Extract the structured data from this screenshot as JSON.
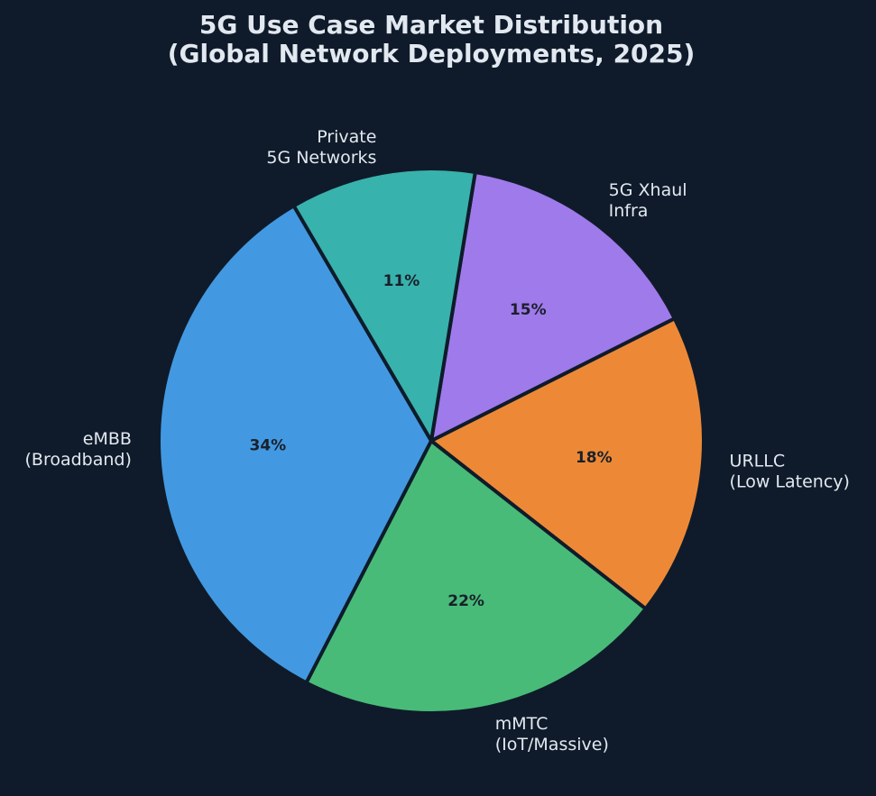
{
  "chart_data": {
    "type": "pie",
    "title": "5G Use Case Market Distribution\n(Global Network Deployments, 2025)",
    "title_lines": [
      "5G Use Case Market Distribution",
      "(Global Network Deployments, 2025)"
    ],
    "start_angle_deg": 80.7,
    "direction": "clockwise",
    "categories": [
      "5G Xhaul Infra",
      "URLLC (Low Latency)",
      "mMTC (IoT/Massive)",
      "eMBB (Broadband)",
      "Private 5G Networks"
    ],
    "values": [
      15,
      18,
      22,
      34,
      11
    ],
    "value_labels": [
      "15%",
      "18%",
      "22%",
      "34%",
      "11%"
    ],
    "slices": [
      {
        "label_lines": [
          "5G Xhaul",
          "Infra"
        ],
        "value": 15,
        "pct_label": "15%",
        "color": "#9f7aea",
        "label_anchor": "start"
      },
      {
        "label_lines": [
          "URLLC",
          "(Low Latency)"
        ],
        "value": 18,
        "pct_label": "18%",
        "color": "#ed8936",
        "label_anchor": "start"
      },
      {
        "label_lines": [
          "mMTC",
          "(IoT/Massive)"
        ],
        "value": 22,
        "pct_label": "22%",
        "color": "#48bb78",
        "label_anchor": "start"
      },
      {
        "label_lines": [
          "eMBB",
          "(Broadband)"
        ],
        "value": 34,
        "pct_label": "34%",
        "color": "#4299e1",
        "label_anchor": "end"
      },
      {
        "label_lines": [
          "Private",
          "5G Networks"
        ],
        "value": 11,
        "pct_label": "11%",
        "color": "#38b2ac",
        "label_anchor": "end"
      }
    ],
    "legend": null,
    "background": "#0f1b2a",
    "edge_color": "#0f1b2a"
  },
  "colors": {
    "background": "#0f1b2a",
    "text": "#e2e8f0",
    "pct_text": "#1a202c"
  }
}
